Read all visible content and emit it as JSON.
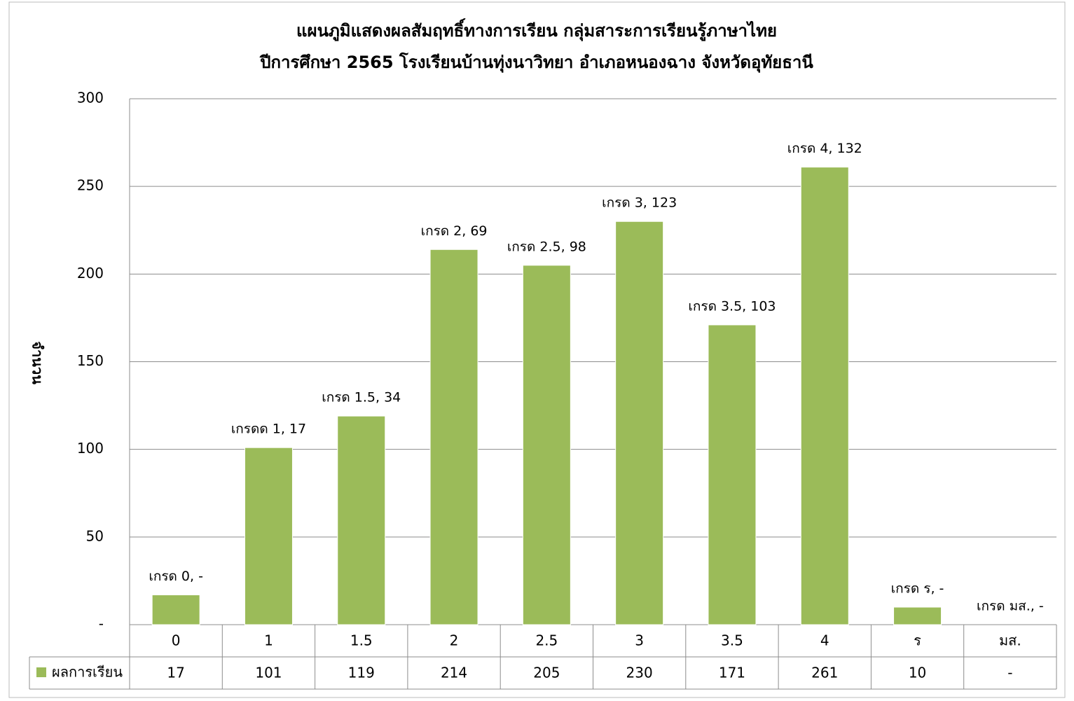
{
  "chart_data": {
    "type": "bar",
    "title": [
      "แผนภูมิแสดงผลสัมฤทธิ์ทางการเรียน กลุ่มสาระการเรียนรู้ภาษาไทย",
      "ปีการศึกษา 2565 โรงเรียนบ้านทุ่งนาวิทยา อำเภอหนองฉาง จังหวัดอุทัยธานี"
    ],
    "y_label": "จำนวน",
    "categories": [
      "0",
      "1",
      "1.5",
      "2",
      "2.5",
      "3",
      "3.5",
      "4",
      "ร",
      "มส."
    ],
    "series": [
      {
        "name": "ผลการเรียน",
        "color": "#9bbb59",
        "values": [
          17,
          101,
          119,
          214,
          205,
          230,
          171,
          261,
          10,
          null
        ],
        "value_labels": [
          "17",
          "101",
          "119",
          "214",
          "205",
          "230",
          "171",
          "261",
          "10",
          "-"
        ]
      }
    ],
    "bar_annotations": [
      "เกรด 0,  -",
      "เกรดด 1,  17",
      "เกรด 1.5,  34",
      "เกรด 2,  69",
      "เกรด 2.5,  98",
      "เกรด 3,  123",
      "เกรด 3.5,  103",
      "เกรด 4,  132",
      "เกรด ร,  -",
      "เกรด มส.,  -"
    ],
    "ylim": [
      0,
      300
    ],
    "yticks": [
      {
        "value": 0,
        "label": "-"
      },
      50,
      100,
      150,
      200,
      250,
      300
    ],
    "grid": true
  }
}
